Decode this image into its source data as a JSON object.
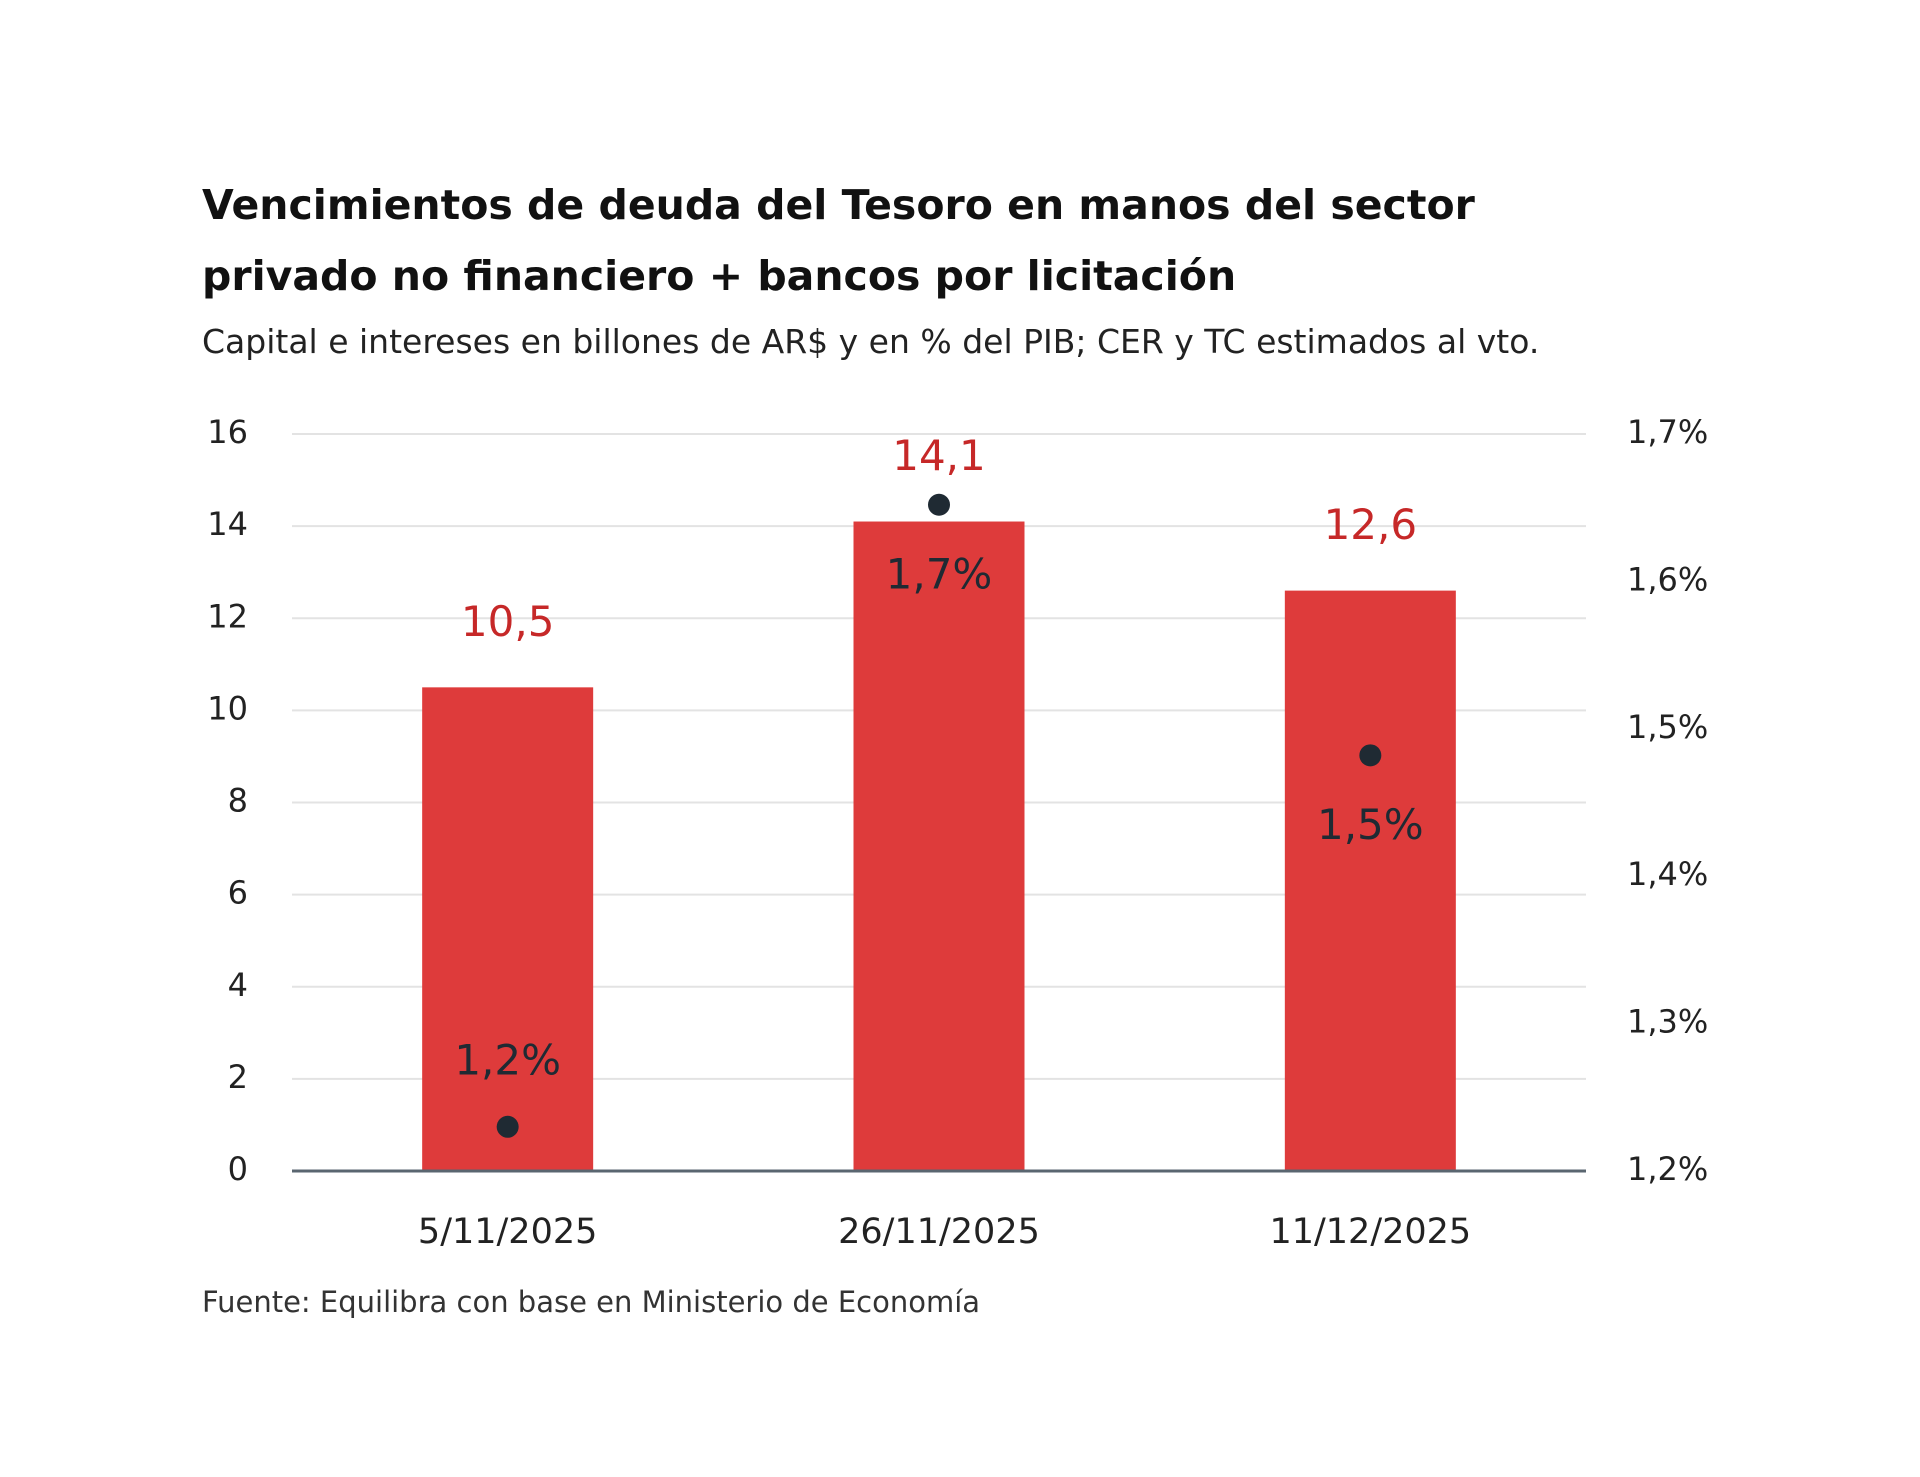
{
  "chart_data": {
    "type": "bar",
    "title": "Vencimientos de deuda del Tesoro en manos del sector privado no financiero + bancos por licitación",
    "subtitle": "Capital e intereses en billones de AR$ y en % del PIB; CER y TC estimados al vto.",
    "source": "Fuente: Equilibra con base en Ministerio de Economía",
    "categories": [
      "5/11/2025",
      "26/11/2025",
      "11/12/2025"
    ],
    "series": [
      {
        "type": "bar",
        "color": "#de3b3b",
        "label_color": "#c62828",
        "values": [
          10.5,
          14.1,
          12.6
        ],
        "value_labels": [
          "10,5",
          "14,1",
          "12,6"
        ]
      },
      {
        "type": "scatter",
        "axis": "y2",
        "color": "#1f2a33",
        "label_color": "#1f2a33",
        "values": [
          1.23,
          1.652,
          1.482
        ],
        "value_labels": [
          "1,2%",
          "1,7%",
          "1,5%"
        ]
      }
    ],
    "ylim": [
      0,
      16
    ],
    "yticks": [
      0,
      2,
      4,
      6,
      8,
      10,
      12,
      14,
      16
    ],
    "y2lim": [
      1.2,
      1.7
    ],
    "y2ticks": [
      {
        "value": 1.2,
        "label": "1,2%"
      },
      {
        "value": 1.3,
        "label": "1,3%"
      },
      {
        "value": 1.4,
        "label": "1,4%"
      },
      {
        "value": 1.5,
        "label": "1,5%"
      },
      {
        "value": 1.6,
        "label": "1,6%"
      },
      {
        "value": 1.7,
        "label": "1,7%"
      }
    ],
    "grid": true
  }
}
